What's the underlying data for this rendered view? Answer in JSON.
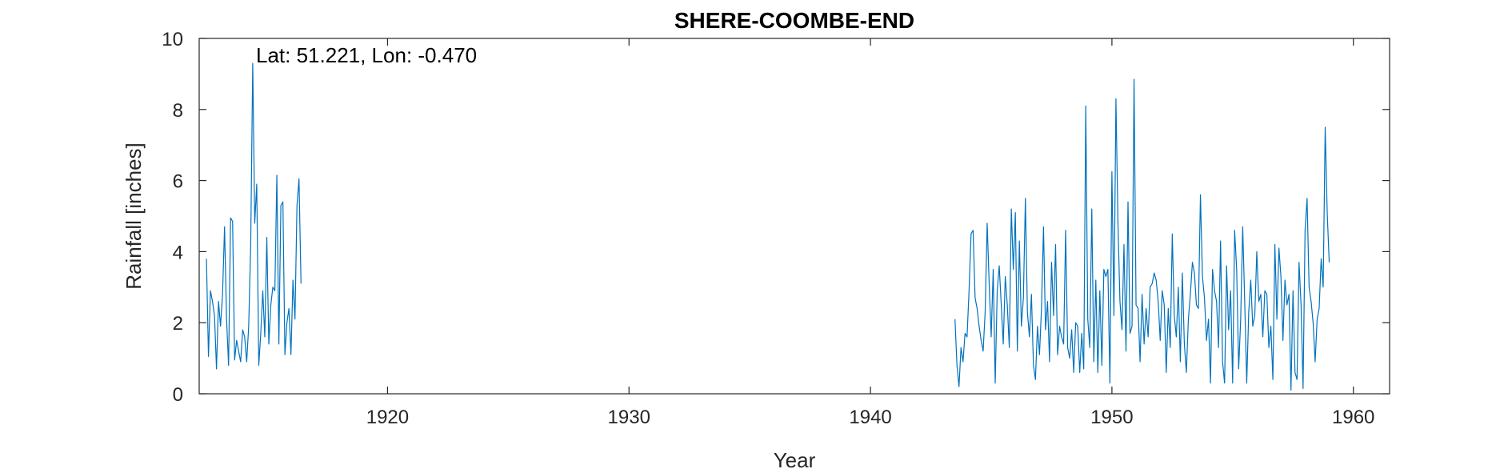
{
  "chart_data": {
    "type": "line",
    "title": "SHERE-COOMBE-END",
    "annotation": "Lat: 51.221, Lon: -0.470",
    "xlabel": "Year",
    "ylabel": "Rainfall [inches]",
    "xlim": [
      1912.2,
      1961.5
    ],
    "ylim": [
      0,
      10
    ],
    "xticks": [
      1920,
      1930,
      1940,
      1950,
      1960
    ],
    "yticks": [
      0,
      2,
      4,
      6,
      8,
      10
    ],
    "grid": false,
    "line_color": "#0072BD",
    "series": [
      {
        "x0": 1912.5,
        "step": 0.08333,
        "values": [
          3.8,
          1.05,
          2.9,
          2.6,
          2.2,
          0.7,
          2.6,
          1.9,
          2.8,
          4.7,
          2.1,
          0.8,
          4.95,
          4.85,
          0.95,
          1.5,
          1.2,
          0.9,
          1.8,
          1.6,
          0.9,
          1.9,
          4.2,
          9.3,
          4.8,
          5.9,
          0.8,
          1.7,
          2.9,
          1.6,
          4.4,
          1.4,
          2.5,
          3.0,
          2.9,
          6.15,
          1.4,
          5.3,
          5.4,
          1.1,
          2.0,
          2.4,
          1.1,
          3.2,
          2.1,
          5.3,
          6.05,
          3.1
        ]
      },
      {
        "x0": 1943.5,
        "step": 0.08333,
        "values": [
          2.1,
          0.8,
          0.2,
          1.3,
          0.9,
          1.7,
          1.6,
          2.9,
          4.5,
          4.6,
          2.7,
          2.4,
          1.9,
          1.5,
          1.2,
          2.3,
          4.8,
          3.1,
          1.6,
          3.5,
          0.3,
          2.9,
          3.6,
          2.5,
          1.4,
          3.3,
          2.5,
          1.3,
          5.2,
          3.5,
          5.1,
          1.2,
          4.3,
          1.9,
          2.7,
          5.5,
          2.3,
          1.6,
          2.8,
          0.8,
          0.4,
          1.9,
          1.1,
          2.4,
          4.7,
          1.8,
          2.6,
          0.9,
          3.7,
          2.2,
          4.2,
          1.1,
          1.9,
          1.6,
          1.4,
          4.6,
          1.3,
          1.0,
          1.8,
          0.6,
          2.0,
          1.9,
          0.6,
          1.7,
          0.7,
          8.1,
          2.1,
          1.3,
          5.2,
          0.9,
          3.2,
          0.6,
          2.9,
          0.8,
          3.5,
          3.3,
          3.5,
          0.3,
          6.25,
          2.2,
          8.3,
          4.8,
          2.6,
          1.8,
          4.2,
          1.2,
          5.4,
          1.7,
          1.9,
          8.85,
          2.5,
          2.4,
          0.9,
          2.8,
          1.4,
          2.4,
          1.6,
          3.0,
          3.1,
          3.4,
          3.2,
          2.6,
          1.5,
          2.9,
          2.5,
          0.6,
          2.4,
          1.3,
          4.5,
          2.2,
          1.6,
          3.0,
          0.9,
          3.4,
          1.4,
          0.6,
          2.1,
          2.8,
          3.7,
          3.4,
          2.5,
          2.4,
          5.6,
          3.3,
          2.7,
          1.5,
          2.1,
          0.3,
          3.5,
          2.9,
          2.6,
          1.3,
          4.3,
          0.9,
          0.3,
          3.6,
          1.8,
          2.9,
          0.3,
          4.6,
          3.5,
          0.7,
          2.1,
          4.7,
          2.6,
          0.3,
          2.3,
          3.2,
          1.9,
          2.2,
          4.0,
          2.6,
          2.8,
          1.6,
          2.9,
          2.8,
          1.3,
          1.9,
          0.4,
          4.2,
          2.1,
          4.1,
          3.3,
          1.5,
          3.2,
          2.5,
          2.8,
          0.1,
          2.9,
          0.6,
          0.4,
          3.7,
          2.5,
          0.15,
          4.6,
          5.5,
          3.0,
          2.6,
          2.0,
          0.9,
          2.1,
          2.4,
          3.8,
          3.0,
          7.5,
          5.1,
          3.7
        ]
      }
    ]
  }
}
